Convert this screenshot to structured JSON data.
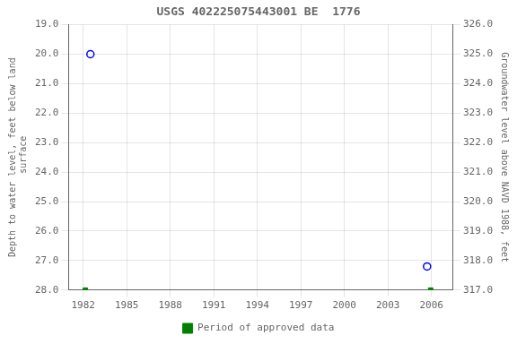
{
  "chart_data": {
    "type": "scatter",
    "title": "USGS 402225075443001 BE  1776",
    "xlim": [
      1981.0,
      2007.5
    ],
    "xticks": [
      1982,
      1985,
      1988,
      1991,
      1994,
      1997,
      2000,
      2003,
      2006
    ],
    "ylim": [
      28.0,
      19.0
    ],
    "yticks": [
      {
        "value": 19.0,
        "label": "19.0"
      },
      {
        "value": 20.0,
        "label": "20.0"
      },
      {
        "value": 21.0,
        "label": "21.0"
      },
      {
        "value": 22.0,
        "label": "22.0"
      },
      {
        "value": 23.0,
        "label": "23.0"
      },
      {
        "value": 24.0,
        "label": "24.0"
      },
      {
        "value": 25.0,
        "label": "25.0"
      },
      {
        "value": 26.0,
        "label": "26.0"
      },
      {
        "value": 27.0,
        "label": "27.0"
      },
      {
        "value": 28.0,
        "label": "28.0"
      }
    ],
    "y2lim": [
      317.0,
      326.0
    ],
    "y2ticks": [
      {
        "value": 317.0,
        "label": "317.0"
      },
      {
        "value": 318.0,
        "label": "318.0"
      },
      {
        "value": 319.0,
        "label": "319.0"
      },
      {
        "value": 320.0,
        "label": "320.0"
      },
      {
        "value": 321.0,
        "label": "321.0"
      },
      {
        "value": 322.0,
        "label": "322.0"
      },
      {
        "value": 323.0,
        "label": "323.0"
      },
      {
        "value": 324.0,
        "label": "324.0"
      },
      {
        "value": 325.0,
        "label": "325.0"
      },
      {
        "value": 326.0,
        "label": "326.0"
      }
    ],
    "ylabel": "Depth to water level, feet below land\n surface",
    "y2label": "Groundwater level above NAVD 1988, feet",
    "grid": true,
    "legend": "bottom",
    "series": [
      {
        "color": "#0000ff",
        "marker": "open_circle",
        "x": [
          1982.5,
          2005.7
        ],
        "values": [
          20.0,
          27.2
        ]
      },
      {
        "name": "Period of approved data",
        "color": "#008000",
        "marker": "square",
        "x": [
          1982.15,
          2005.95
        ],
        "values": [
          28.0,
          28.0
        ]
      }
    ]
  }
}
